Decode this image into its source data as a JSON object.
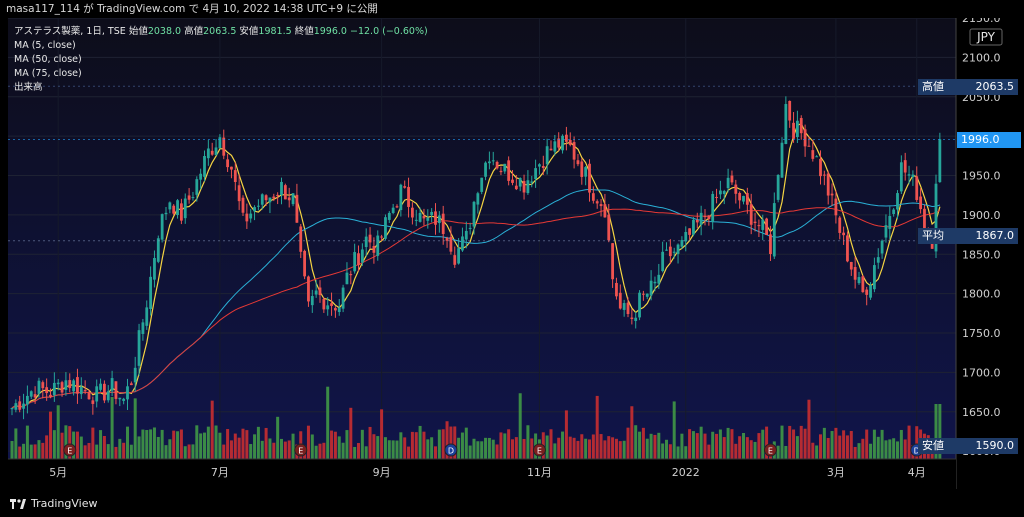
{
  "header": {
    "attribution": "masa117_114 が TradingView.com で 4月 10, 2022 14:38 UTC+9 に公開"
  },
  "legend": {
    "symbol": "アステラス製薬, 1日, TSE",
    "open_label": "始値",
    "open_value": "2038.0",
    "high_label": "高値",
    "high_value": "2063.5",
    "low_label": "安値",
    "low_value": "1981.5",
    "close_label": "終値",
    "close_value": "1996.0",
    "change": "−12.0 (−0.60%)",
    "ma5": "MA (5, close)",
    "ma50": "MA (50, close)",
    "ma75": "MA (75, close)",
    "volume": "出来高"
  },
  "price_tags": {
    "high_label": "高値",
    "high_value": "2063.5",
    "last_value": "1996.0",
    "avg_label": "平均",
    "avg_value": "1867.0",
    "low_label": "安値",
    "low_value": "1590.0",
    "currency": "JPY"
  },
  "footer": {
    "brand": "TradingView"
  },
  "colors": {
    "up": "#26a69a",
    "down": "#ef5350",
    "ma5": "#f5d442",
    "ma50": "#2ab0d6",
    "ma75": "#e53935",
    "vol_up": "#43a047",
    "vol_down": "#d32f2f",
    "tag_bg": "#1e3a66",
    "last_bg": "#2196f3"
  },
  "chart_data": {
    "type": "candlestick",
    "y_axis": {
      "min": 1590,
      "max": 2150,
      "ticks": [
        "2150.0",
        "2100.0",
        "2050.0",
        "2000.0",
        "1950.0",
        "1900.0",
        "1850.0",
        "1800.0",
        "1750.0",
        "1700.0",
        "1650.0",
        "1600.0"
      ]
    },
    "x_axis": {
      "labels": [
        "5月",
        "7月",
        "9月",
        "11月",
        "2022",
        "3月",
        "4月"
      ],
      "label_index": [
        12,
        54,
        96,
        137,
        175,
        214,
        235
      ]
    },
    "anchors": [
      [
        0,
        1655
      ],
      [
        6,
        1680
      ],
      [
        10,
        1675
      ],
      [
        14,
        1690
      ],
      [
        18,
        1680
      ],
      [
        22,
        1670
      ],
      [
        26,
        1680
      ],
      [
        29,
        1665
      ],
      [
        31,
        1690
      ],
      [
        33,
        1740
      ],
      [
        35,
        1790
      ],
      [
        38,
        1880
      ],
      [
        41,
        1920
      ],
      [
        44,
        1900
      ],
      [
        47,
        1930
      ],
      [
        51,
        1980
      ],
      [
        54,
        2000
      ],
      [
        57,
        1960
      ],
      [
        60,
        1890
      ],
      [
        63,
        1910
      ],
      [
        66,
        1920
      ],
      [
        70,
        1935
      ],
      [
        73,
        1920
      ],
      [
        75,
        1840
      ],
      [
        77,
        1780
      ],
      [
        79,
        1800
      ],
      [
        82,
        1790
      ],
      [
        85,
        1785
      ],
      [
        87,
        1820
      ],
      [
        89,
        1840
      ],
      [
        92,
        1870
      ],
      [
        95,
        1860
      ],
      [
        98,
        1900
      ],
      [
        101,
        1930
      ],
      [
        104,
        1910
      ],
      [
        107,
        1890
      ],
      [
        110,
        1895
      ],
      [
        113,
        1880
      ],
      [
        115,
        1850
      ],
      [
        118,
        1870
      ],
      [
        121,
        1940
      ],
      [
        124,
        1980
      ],
      [
        127,
        1960
      ],
      [
        130,
        1950
      ],
      [
        133,
        1940
      ],
      [
        136,
        1960
      ],
      [
        139,
        1980
      ],
      [
        142,
        1990
      ],
      [
        145,
        1985
      ],
      [
        148,
        1960
      ],
      [
        151,
        1930
      ],
      [
        154,
        1910
      ],
      [
        156,
        1820
      ],
      [
        158,
        1780
      ],
      [
        161,
        1770
      ],
      [
        163,
        1790
      ],
      [
        165,
        1800
      ],
      [
        167,
        1810
      ],
      [
        169,
        1840
      ],
      [
        171,
        1850
      ],
      [
        174,
        1860
      ],
      [
        177,
        1880
      ],
      [
        180,
        1900
      ],
      [
        183,
        1920
      ],
      [
        186,
        1940
      ],
      [
        189,
        1920
      ],
      [
        192,
        1900
      ],
      [
        195,
        1880
      ],
      [
        197,
        1860
      ],
      [
        199,
        1960
      ],
      [
        201,
        2040
      ],
      [
        203,
        2010
      ],
      [
        206,
        2000
      ],
      [
        209,
        1970
      ],
      [
        212,
        1930
      ],
      [
        215,
        1880
      ],
      [
        217,
        1850
      ],
      [
        219,
        1820
      ],
      [
        221,
        1800
      ],
      [
        223,
        1820
      ],
      [
        226,
        1870
      ],
      [
        229,
        1920
      ],
      [
        231,
        1960
      ],
      [
        233,
        1950
      ],
      [
        235,
        1930
      ],
      [
        237,
        1890
      ],
      [
        239,
        1870
      ],
      [
        240,
        1950
      ],
      [
        241,
        1996
      ]
    ],
    "ma_series": [
      {
        "name": "MA (5, close)",
        "period": 5
      },
      {
        "name": "MA (50, close)",
        "period": 50
      },
      {
        "name": "MA (75, close)",
        "period": 75
      }
    ],
    "last_close": 1996.0,
    "high": 2063.5,
    "average": 1867.0,
    "low": 1590.0
  }
}
